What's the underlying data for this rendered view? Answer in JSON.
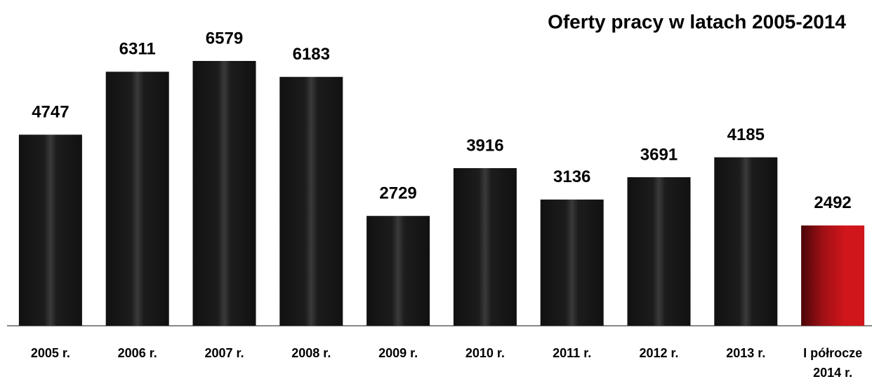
{
  "chart_data": {
    "type": "bar",
    "title": "Oferty pracy w latach 2005-2014",
    "categories": [
      "2005 r.",
      "2006 r.",
      "2007 r.",
      "2008 r.",
      "2009 r.",
      "2010 r.",
      "2011 r.",
      "2012 r.",
      "2013 r.",
      "I półrocze 2014 r."
    ],
    "values": [
      4747,
      6311,
      6579,
      6183,
      2729,
      3916,
      3136,
      3691,
      4185,
      2492
    ],
    "colors": [
      "#111111",
      "#111111",
      "#111111",
      "#111111",
      "#111111",
      "#111111",
      "#111111",
      "#111111",
      "#111111",
      "#d0161b"
    ]
  }
}
